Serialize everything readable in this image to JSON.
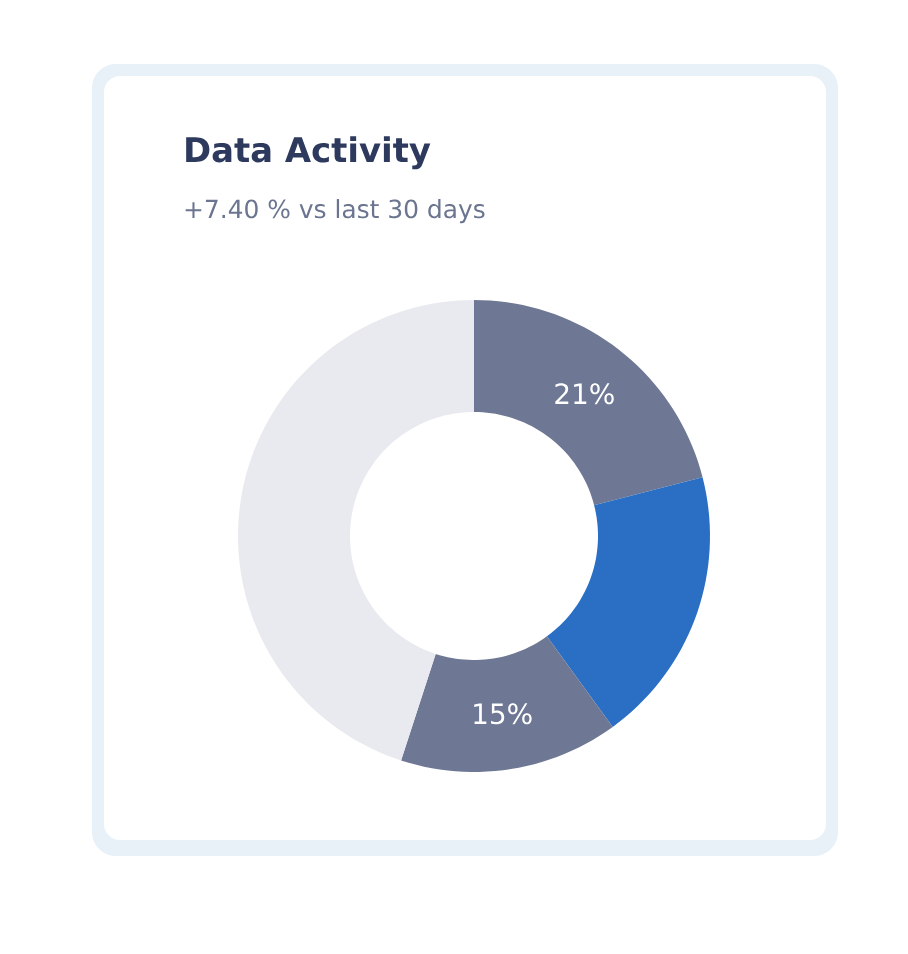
{
  "chart_data": {
    "type": "donut",
    "title": "Data Activity",
    "subtitle": "+7.40 % vs last 30 days",
    "categories": [
      null,
      null,
      null,
      null
    ],
    "values": [
      21,
      19,
      15,
      45
    ],
    "colors": [
      "#6e7894",
      "#2a6fc4",
      "#6e7894",
      "#e9eaef"
    ],
    "value_labels": [
      "21%",
      null,
      "15%",
      null
    ]
  }
}
